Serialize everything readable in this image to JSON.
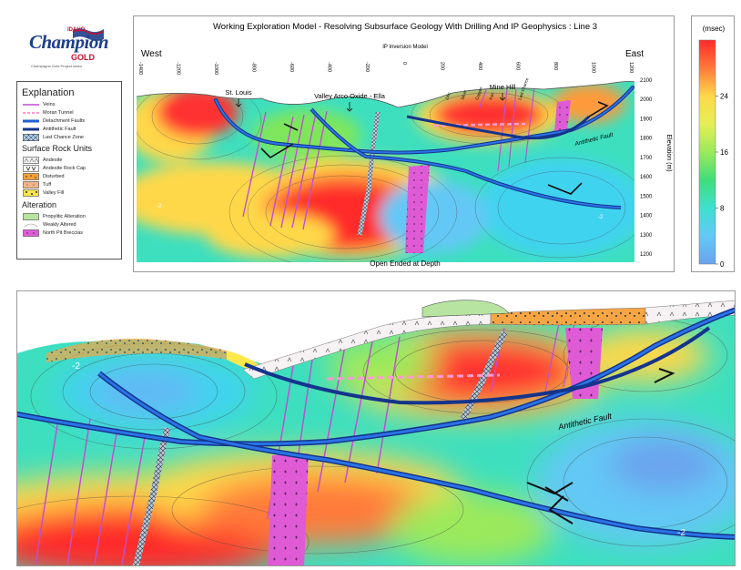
{
  "logo": {
    "small_text": "IDAHO",
    "main_text": "Champion",
    "sub_brand": "GOLD",
    "tagline": "Champagne Gold Project Idaho"
  },
  "section": {
    "title": "Working Exploration Model - Resolving Subsurface Geology With Drilling And IP Geophysics : Line 3",
    "model_label": "IP Inversion Model",
    "west_label": "West",
    "east_label": "East",
    "bottom_label": "Open Ended at Depth",
    "elevation_label": "Elevation (m)",
    "antithetic_label": "Antithetic Fault",
    "x_ticks": [
      "-1400",
      "-1200",
      "-1000",
      "-800",
      "-600",
      "-400",
      "-200",
      "0",
      "200",
      "400",
      "600",
      "800",
      "1000",
      "1200"
    ],
    "elev_ticks": [
      "2100",
      "2000",
      "1900",
      "1800",
      "1700",
      "1600",
      "1500",
      "1400",
      "1300",
      "1200"
    ],
    "locations": [
      {
        "name": "St. Louis"
      },
      {
        "name": "Valley Arco Oxide - Ella"
      },
      {
        "name": "Mine Hill"
      }
    ],
    "drill_labels": [
      "Zinc",
      "Silver",
      "Copper",
      "Iron",
      "Last Chance"
    ],
    "contour_values": [
      "-2",
      "-2"
    ]
  },
  "colorbar": {
    "unit_label": "(msec)",
    "ticks": [
      "24",
      "16",
      "8",
      "0"
    ],
    "colors": [
      "#ff2a2a",
      "#ff7a3a",
      "#ffd84a",
      "#e4ef55",
      "#9be95c",
      "#3fdd7a",
      "#3fe0d0",
      "#63c8f5",
      "#6aa3ee"
    ]
  },
  "legend": {
    "title": "Explanation",
    "lines": [
      {
        "label": "Veins"
      },
      {
        "label": "Moran Tunnel"
      },
      {
        "label": "Detachment Faults"
      },
      {
        "label": "Antithetic Fault"
      },
      {
        "label": "Last Chance Zone"
      }
    ],
    "rock_units_title": "Surface Rock Units",
    "rock_units": [
      {
        "label": "Andesite"
      },
      {
        "label": "Andesite Rock Cap"
      },
      {
        "label": "Disturbed"
      },
      {
        "label": "Tuff"
      },
      {
        "label": "Valley Fill"
      }
    ],
    "alteration_title": "Alteration",
    "alteration": [
      {
        "label": "Propylitic Alteration"
      },
      {
        "label": "Weakly Altered"
      },
      {
        "label": "North Pit Breccias"
      }
    ]
  },
  "detail": {
    "antithetic_label": "Antithetic Fault",
    "contour_values": [
      "-2",
      "-2"
    ]
  }
}
